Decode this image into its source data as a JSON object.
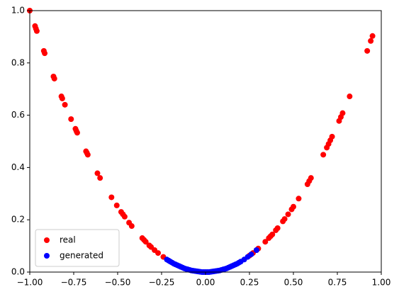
{
  "chart_data": {
    "type": "scatter",
    "xlim": [
      -1.0,
      1.0
    ],
    "ylim": [
      0.0,
      1.0
    ],
    "xticks": [
      {
        "value": -1.0,
        "label": "−1.00"
      },
      {
        "value": -0.75,
        "label": "−0.75"
      },
      {
        "value": -0.5,
        "label": "−0.50"
      },
      {
        "value": -0.25,
        "label": "−0.25"
      },
      {
        "value": 0.0,
        "label": "0.00"
      },
      0.25,
      {
        "value": 0.5,
        "label": "0.50"
      },
      0.75,
      {
        "value": 1.0,
        "label": "1.00"
      }
    ],
    "yticks": [
      {
        "value": 0.0,
        "label": "0.0"
      },
      0.2,
      0.4,
      0.6,
      0.8,
      {
        "value": 1.0,
        "label": "1.0"
      }
    ],
    "legend": "lower left",
    "series": [
      {
        "name": "real",
        "color": "#ff0000",
        "x": [
          -1.0,
          -0.97,
          -0.965,
          -0.96,
          -0.92,
          -0.915,
          -0.865,
          -0.86,
          -0.82,
          -0.815,
          -0.8,
          -0.765,
          -0.74,
          -0.735,
          -0.73,
          -0.68,
          -0.675,
          -0.67,
          -0.615,
          -0.6,
          -0.535,
          -0.505,
          -0.48,
          -0.47,
          -0.46,
          -0.435,
          -0.42,
          -0.36,
          -0.35,
          -0.34,
          -0.32,
          -0.31,
          -0.29,
          -0.27,
          -0.24,
          0.25,
          0.27,
          0.29,
          0.3,
          0.34,
          0.36,
          0.37,
          0.38,
          0.4,
          0.41,
          0.44,
          0.45,
          0.47,
          0.49,
          0.5,
          0.53,
          0.58,
          0.59,
          0.6,
          0.67,
          0.69,
          0.7,
          0.71,
          0.72,
          0.76,
          0.77,
          0.78,
          0.82,
          0.92,
          0.94,
          0.95
        ],
        "values": [
          1.0,
          0.941,
          0.931,
          0.922,
          0.846,
          0.837,
          0.748,
          0.74,
          0.672,
          0.664,
          0.64,
          0.585,
          0.548,
          0.54,
          0.533,
          0.462,
          0.456,
          0.449,
          0.378,
          0.36,
          0.286,
          0.255,
          0.23,
          0.221,
          0.212,
          0.189,
          0.176,
          0.13,
          0.123,
          0.116,
          0.102,
          0.096,
          0.084,
          0.073,
          0.058,
          0.063,
          0.073,
          0.084,
          0.09,
          0.116,
          0.13,
          0.137,
          0.144,
          0.16,
          0.168,
          0.194,
          0.203,
          0.221,
          0.24,
          0.25,
          0.281,
          0.336,
          0.348,
          0.36,
          0.449,
          0.476,
          0.49,
          0.504,
          0.518,
          0.578,
          0.593,
          0.608,
          0.672,
          0.846,
          0.884,
          0.903
        ]
      },
      {
        "name": "generated",
        "color": "#0000ff",
        "x": [
          -0.22,
          -0.21,
          -0.2,
          -0.19,
          -0.18,
          -0.17,
          -0.16,
          -0.15,
          -0.14,
          -0.13,
          -0.12,
          -0.11,
          -0.1,
          -0.09,
          -0.08,
          -0.07,
          -0.06,
          -0.05,
          -0.04,
          -0.03,
          -0.02,
          -0.01,
          0.0,
          0.01,
          0.02,
          0.03,
          0.04,
          0.05,
          0.06,
          0.07,
          0.08,
          0.09,
          0.1,
          0.11,
          0.12,
          0.13,
          0.14,
          0.15,
          0.16,
          0.17,
          0.18,
          0.19,
          0.2,
          0.22,
          0.24,
          0.26,
          0.29
        ],
        "values": [
          0.048,
          0.044,
          0.04,
          0.036,
          0.032,
          0.029,
          0.026,
          0.023,
          0.02,
          0.017,
          0.014,
          0.012,
          0.01,
          0.008,
          0.006,
          0.005,
          0.004,
          0.003,
          0.002,
          0.001,
          0.0,
          0.0,
          0.0,
          0.0,
          0.0,
          0.001,
          0.002,
          0.003,
          0.004,
          0.005,
          0.006,
          0.008,
          0.01,
          0.012,
          0.014,
          0.017,
          0.02,
          0.023,
          0.026,
          0.029,
          0.032,
          0.036,
          0.04,
          0.048,
          0.058,
          0.068,
          0.084
        ]
      }
    ]
  }
}
